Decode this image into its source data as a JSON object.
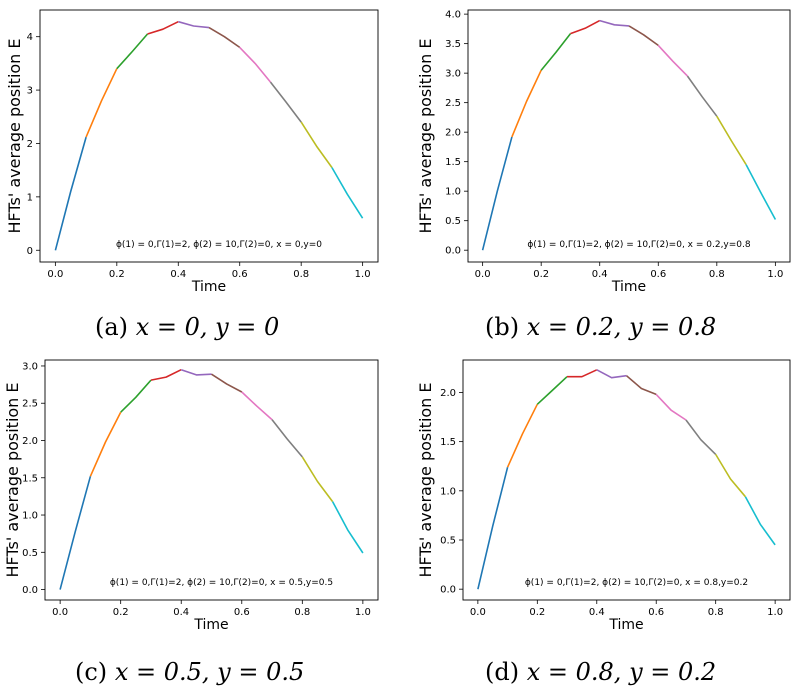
{
  "chart_data": [
    {
      "type": "line",
      "caption_letter": "(a)",
      "caption_math": "x = 0, y = 0",
      "xlabel": "Time",
      "ylabel": "HFTs' average position E",
      "annotation": "ϕ(1) = 0,Γ(1)=2, ϕ(2) = 10,Γ(2)=0, x = 0,y=0",
      "xlim": [
        -0.05,
        1.05
      ],
      "ylim": [
        -0.22,
        4.5
      ],
      "x_ticks": [
        "0.0",
        "0.2",
        "0.4",
        "0.6",
        "0.8",
        "1.0"
      ],
      "y_ticks": [
        "0",
        "1",
        "2",
        "3",
        "4"
      ],
      "series": [
        {
          "color": "#1f77b4",
          "points": [
            [
              0.0,
              0.0
            ],
            [
              0.05,
              1.1
            ],
            [
              0.1,
              2.12
            ]
          ]
        },
        {
          "color": "#ff7f0e",
          "points": [
            [
              0.1,
              2.12
            ],
            [
              0.15,
              2.8
            ],
            [
              0.2,
              3.4
            ]
          ]
        },
        {
          "color": "#2ca02c",
          "points": [
            [
              0.2,
              3.4
            ],
            [
              0.25,
              3.72
            ],
            [
              0.3,
              4.05
            ]
          ]
        },
        {
          "color": "#d62728",
          "points": [
            [
              0.3,
              4.05
            ],
            [
              0.35,
              4.14
            ],
            [
              0.4,
              4.28
            ]
          ]
        },
        {
          "color": "#9467bd",
          "points": [
            [
              0.4,
              4.28
            ],
            [
              0.45,
              4.2
            ],
            [
              0.5,
              4.17
            ]
          ]
        },
        {
          "color": "#8c564b",
          "points": [
            [
              0.5,
              4.17
            ],
            [
              0.55,
              4.0
            ],
            [
              0.6,
              3.8
            ]
          ]
        },
        {
          "color": "#e377c2",
          "points": [
            [
              0.6,
              3.8
            ],
            [
              0.65,
              3.5
            ],
            [
              0.7,
              3.15
            ]
          ]
        },
        {
          "color": "#7f7f7f",
          "points": [
            [
              0.7,
              3.15
            ],
            [
              0.75,
              2.78
            ],
            [
              0.8,
              2.4
            ]
          ]
        },
        {
          "color": "#bcbd22",
          "points": [
            [
              0.8,
              2.4
            ],
            [
              0.85,
              1.95
            ],
            [
              0.9,
              1.55
            ]
          ]
        },
        {
          "color": "#17becf",
          "points": [
            [
              0.9,
              1.55
            ],
            [
              0.95,
              1.05
            ],
            [
              1.0,
              0.6
            ]
          ]
        }
      ]
    },
    {
      "type": "line",
      "caption_letter": "(b)",
      "caption_math": "x = 0.2, y = 0.8",
      "xlabel": "Time",
      "ylabel": "HFTs' average position E",
      "annotation": "ϕ(1) = 0,Γ(1)=2, ϕ(2) = 10,Γ(2)=0, x = 0.2,y=0.8",
      "xlim": [
        -0.05,
        1.05
      ],
      "ylim": [
        -0.2,
        4.07
      ],
      "x_ticks": [
        "0.0",
        "0.2",
        "0.4",
        "0.6",
        "0.8",
        "1.0"
      ],
      "y_ticks": [
        "0.0",
        "0.5",
        "1.0",
        "1.5",
        "2.0",
        "2.5",
        "3.0",
        "3.5",
        "4.0"
      ],
      "series": [
        {
          "color": "#1f77b4",
          "points": [
            [
              0.0,
              0.0
            ],
            [
              0.05,
              1.0
            ],
            [
              0.1,
              1.92
            ]
          ]
        },
        {
          "color": "#ff7f0e",
          "points": [
            [
              0.1,
              1.92
            ],
            [
              0.15,
              2.52
            ],
            [
              0.2,
              3.05
            ]
          ]
        },
        {
          "color": "#2ca02c",
          "points": [
            [
              0.2,
              3.05
            ],
            [
              0.25,
              3.35
            ],
            [
              0.3,
              3.67
            ]
          ]
        },
        {
          "color": "#d62728",
          "points": [
            [
              0.3,
              3.67
            ],
            [
              0.35,
              3.76
            ],
            [
              0.4,
              3.89
            ]
          ]
        },
        {
          "color": "#9467bd",
          "points": [
            [
              0.4,
              3.89
            ],
            [
              0.45,
              3.82
            ],
            [
              0.5,
              3.8
            ]
          ]
        },
        {
          "color": "#8c564b",
          "points": [
            [
              0.5,
              3.8
            ],
            [
              0.55,
              3.65
            ],
            [
              0.6,
              3.47
            ]
          ]
        },
        {
          "color": "#e377c2",
          "points": [
            [
              0.6,
              3.47
            ],
            [
              0.65,
              3.2
            ],
            [
              0.7,
              2.95
            ]
          ]
        },
        {
          "color": "#7f7f7f",
          "points": [
            [
              0.7,
              2.95
            ],
            [
              0.75,
              2.6
            ],
            [
              0.8,
              2.27
            ]
          ]
        },
        {
          "color": "#bcbd22",
          "points": [
            [
              0.8,
              2.27
            ],
            [
              0.85,
              1.85
            ],
            [
              0.9,
              1.45
            ]
          ]
        },
        {
          "color": "#17becf",
          "points": [
            [
              0.9,
              1.45
            ],
            [
              0.95,
              0.98
            ],
            [
              1.0,
              0.52
            ]
          ]
        }
      ]
    },
    {
      "type": "line",
      "caption_letter": "(c)",
      "caption_math": "x = 0.5, y = 0.5",
      "xlabel": "Time",
      "ylabel": "HFTs' average position E",
      "annotation": "ϕ(1) = 0,Γ(1)=2, ϕ(2) = 10,Γ(2)=0, x = 0.5,y=0.5",
      "xlim": [
        -0.05,
        1.05
      ],
      "ylim": [
        -0.14,
        3.08
      ],
      "x_ticks": [
        "0.0",
        "0.2",
        "0.4",
        "0.6",
        "0.8",
        "1.0"
      ],
      "y_ticks": [
        "0.0",
        "0.5",
        "1.0",
        "1.5",
        "2.0",
        "2.5",
        "3.0"
      ],
      "series": [
        {
          "color": "#1f77b4",
          "points": [
            [
              0.0,
              0.0
            ],
            [
              0.05,
              0.78
            ],
            [
              0.1,
              1.52
            ]
          ]
        },
        {
          "color": "#ff7f0e",
          "points": [
            [
              0.1,
              1.52
            ],
            [
              0.15,
              1.98
            ],
            [
              0.2,
              2.38
            ]
          ]
        },
        {
          "color": "#2ca02c",
          "points": [
            [
              0.2,
              2.38
            ],
            [
              0.25,
              2.58
            ],
            [
              0.3,
              2.81
            ]
          ]
        },
        {
          "color": "#d62728",
          "points": [
            [
              0.3,
              2.81
            ],
            [
              0.35,
              2.85
            ],
            [
              0.4,
              2.95
            ]
          ]
        },
        {
          "color": "#9467bd",
          "points": [
            [
              0.4,
              2.95
            ],
            [
              0.45,
              2.88
            ],
            [
              0.5,
              2.89
            ]
          ]
        },
        {
          "color": "#8c564b",
          "points": [
            [
              0.5,
              2.89
            ],
            [
              0.55,
              2.76
            ],
            [
              0.6,
              2.65
            ]
          ]
        },
        {
          "color": "#e377c2",
          "points": [
            [
              0.6,
              2.65
            ],
            [
              0.65,
              2.46
            ],
            [
              0.7,
              2.28
            ]
          ]
        },
        {
          "color": "#7f7f7f",
          "points": [
            [
              0.7,
              2.28
            ],
            [
              0.75,
              2.02
            ],
            [
              0.8,
              1.78
            ]
          ]
        },
        {
          "color": "#bcbd22",
          "points": [
            [
              0.8,
              1.78
            ],
            [
              0.85,
              1.45
            ],
            [
              0.9,
              1.18
            ]
          ]
        },
        {
          "color": "#17becf",
          "points": [
            [
              0.9,
              1.18
            ],
            [
              0.95,
              0.8
            ],
            [
              1.0,
              0.49
            ]
          ]
        }
      ]
    },
    {
      "type": "line",
      "caption_letter": "(d)",
      "caption_math": "x = 0.8, y = 0.2",
      "xlabel": "Time",
      "ylabel": "HFTs' average position E",
      "annotation": "ϕ(1) = 0,Γ(1)=2, ϕ(2) = 10,Γ(2)=0, x = 0.8,y=0.2",
      "xlim": [
        -0.05,
        1.05
      ],
      "ylim": [
        -0.11,
        2.33
      ],
      "x_ticks": [
        "0.0",
        "0.2",
        "0.4",
        "0.6",
        "0.8",
        "1.0"
      ],
      "y_ticks": [
        "0.0",
        "0.5",
        "1.0",
        "1.5",
        "2.0"
      ],
      "series": [
        {
          "color": "#1f77b4",
          "points": [
            [
              0.0,
              0.0
            ],
            [
              0.05,
              0.64
            ],
            [
              0.1,
              1.24
            ]
          ]
        },
        {
          "color": "#ff7f0e",
          "points": [
            [
              0.1,
              1.24
            ],
            [
              0.15,
              1.58
            ],
            [
              0.2,
              1.88
            ]
          ]
        },
        {
          "color": "#2ca02c",
          "points": [
            [
              0.2,
              1.88
            ],
            [
              0.25,
              2.02
            ],
            [
              0.3,
              2.16
            ]
          ]
        },
        {
          "color": "#d62728",
          "points": [
            [
              0.3,
              2.16
            ],
            [
              0.35,
              2.16
            ],
            [
              0.4,
              2.23
            ]
          ]
        },
        {
          "color": "#9467bd",
          "points": [
            [
              0.4,
              2.23
            ],
            [
              0.45,
              2.15
            ],
            [
              0.5,
              2.17
            ]
          ]
        },
        {
          "color": "#8c564b",
          "points": [
            [
              0.5,
              2.17
            ],
            [
              0.55,
              2.04
            ],
            [
              0.6,
              1.98
            ]
          ]
        },
        {
          "color": "#e377c2",
          "points": [
            [
              0.6,
              1.98
            ],
            [
              0.65,
              1.82
            ],
            [
              0.7,
              1.72
            ]
          ]
        },
        {
          "color": "#7f7f7f",
          "points": [
            [
              0.7,
              1.72
            ],
            [
              0.75,
              1.52
            ],
            [
              0.8,
              1.37
            ]
          ]
        },
        {
          "color": "#bcbd22",
          "points": [
            [
              0.8,
              1.37
            ],
            [
              0.85,
              1.12
            ],
            [
              0.9,
              0.94
            ]
          ]
        },
        {
          "color": "#17becf",
          "points": [
            [
              0.9,
              0.94
            ],
            [
              0.95,
              0.66
            ],
            [
              1.0,
              0.45
            ]
          ]
        }
      ]
    }
  ]
}
